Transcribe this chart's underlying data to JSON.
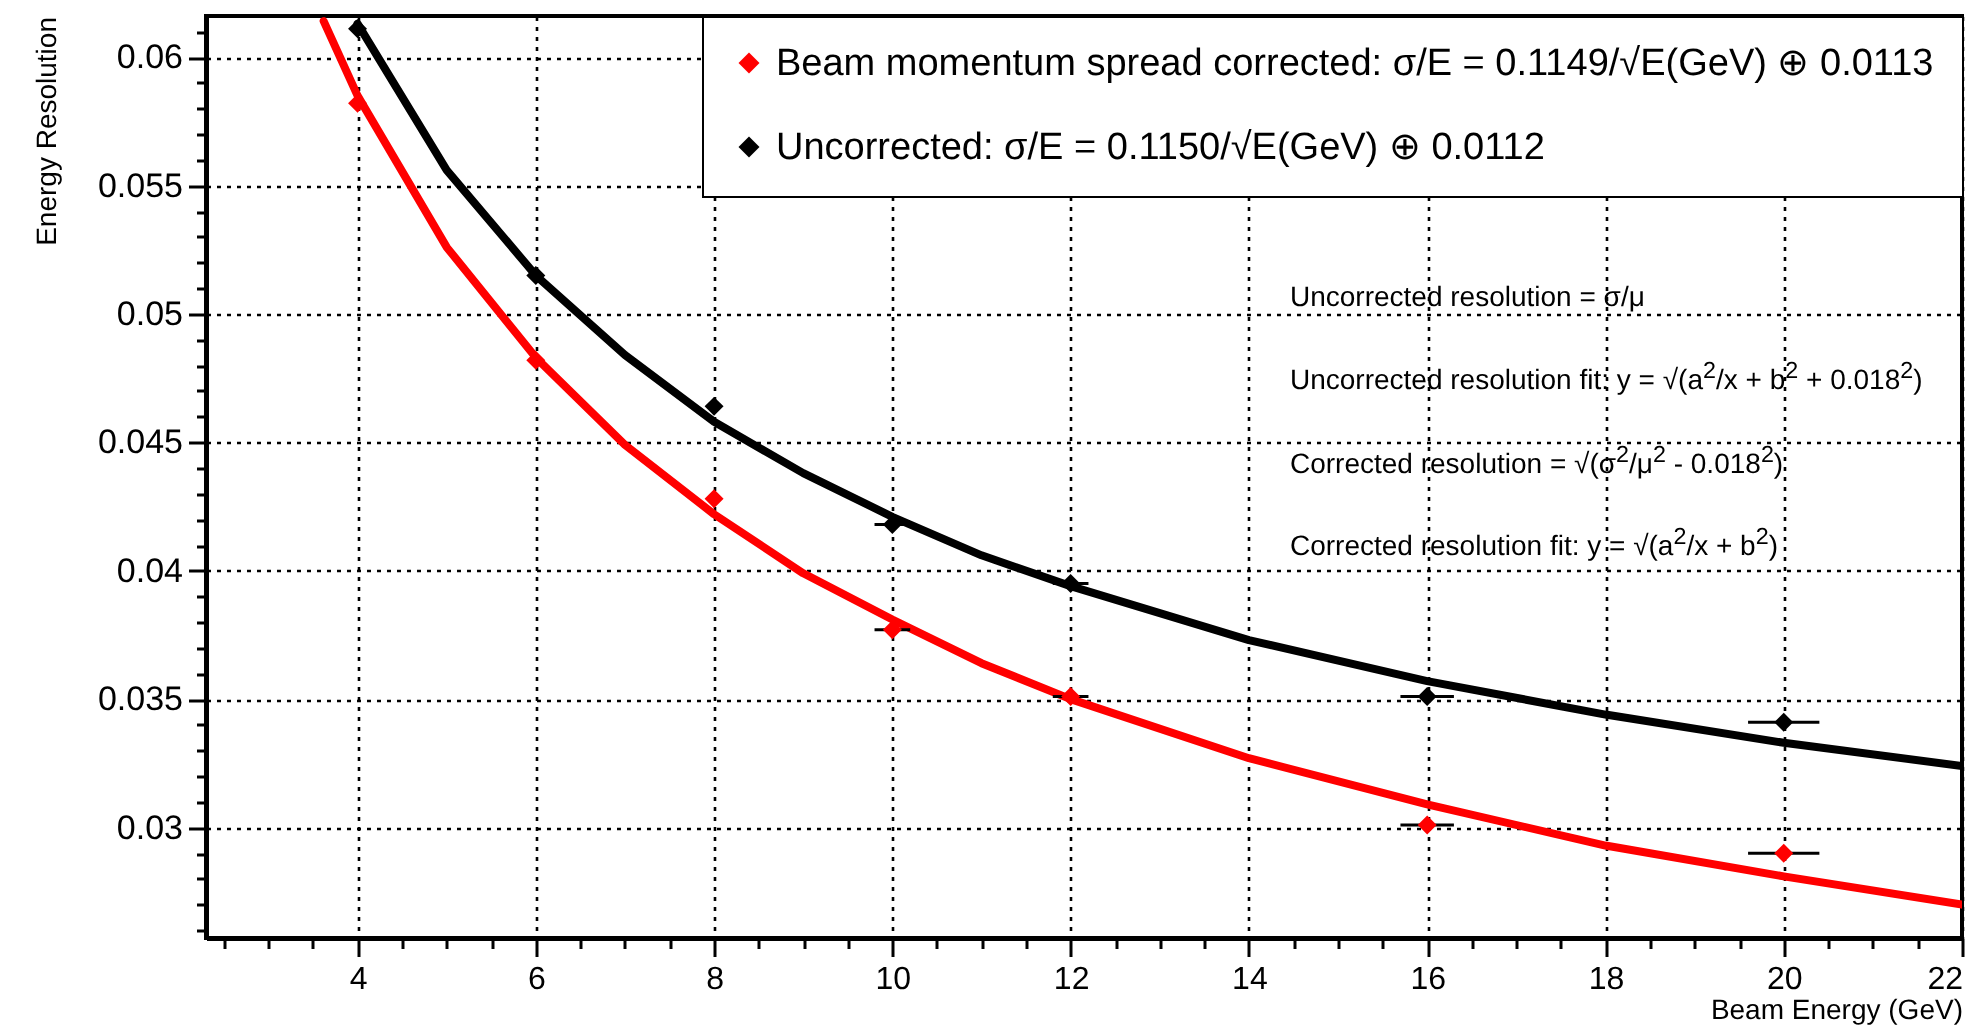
{
  "chart_data": {
    "type": "scatter",
    "xlabel": "Beam Energy (GeV)",
    "ylabel": "Energy Resolution",
    "xlim": [
      2.3,
      22
    ],
    "ylim": [
      0.0257,
      0.0616
    ],
    "xticks": [
      {
        "value": 2.5,
        "label": null
      },
      {
        "value": 3,
        "label": null
      },
      {
        "value": 3.5,
        "label": null
      },
      4,
      {
        "value": 4.5,
        "label": null
      },
      {
        "value": 5,
        "label": null
      },
      {
        "value": 5.5,
        "label": null
      },
      6,
      {
        "value": 6.5,
        "label": null
      },
      {
        "value": 7,
        "label": null
      },
      {
        "value": 7.5,
        "label": null
      },
      8,
      {
        "value": 8.5,
        "label": null
      },
      {
        "value": 9,
        "label": null
      },
      {
        "value": 9.5,
        "label": null
      },
      10,
      {
        "value": 10.5,
        "label": null
      },
      {
        "value": 11,
        "label": null
      },
      {
        "value": 11.5,
        "label": null
      },
      12,
      {
        "value": 12.5,
        "label": null
      },
      {
        "value": 13,
        "label": null
      },
      {
        "value": 13.5,
        "label": null
      },
      14,
      {
        "value": 14.5,
        "label": null
      },
      {
        "value": 15,
        "label": null
      },
      {
        "value": 15.5,
        "label": null
      },
      16,
      {
        "value": 16.5,
        "label": null
      },
      {
        "value": 17,
        "label": null
      },
      {
        "value": 17.5,
        "label": null
      },
      18,
      {
        "value": 18.5,
        "label": null
      },
      {
        "value": 19,
        "label": null
      },
      {
        "value": 19.5,
        "label": null
      },
      20,
      {
        "value": 20.5,
        "label": null
      },
      {
        "value": 21,
        "label": null
      },
      {
        "value": 21.5,
        "label": null
      },
      22
    ],
    "yticks": [
      {
        "value": 0.026,
        "label": null
      },
      {
        "value": 0.027,
        "label": null
      },
      {
        "value": 0.028,
        "label": null
      },
      {
        "value": 0.029,
        "label": null
      },
      0.03,
      {
        "value": 0.031,
        "label": null
      },
      {
        "value": 0.032,
        "label": null
      },
      {
        "value": 0.033,
        "label": null
      },
      {
        "value": 0.034,
        "label": null
      },
      0.035,
      {
        "value": 0.036,
        "label": null
      },
      {
        "value": 0.037,
        "label": null
      },
      {
        "value": 0.038,
        "label": null
      },
      {
        "value": 0.039,
        "label": null
      },
      0.04,
      {
        "value": 0.041,
        "label": null
      },
      {
        "value": 0.042,
        "label": null
      },
      {
        "value": 0.043,
        "label": null
      },
      {
        "value": 0.044,
        "label": null
      },
      0.045,
      {
        "value": 0.046,
        "label": null
      },
      {
        "value": 0.047,
        "label": null
      },
      {
        "value": 0.048,
        "label": null
      },
      {
        "value": 0.049,
        "label": null
      },
      0.05,
      {
        "value": 0.051,
        "label": null
      },
      {
        "value": 0.052,
        "label": null
      },
      {
        "value": 0.053,
        "label": null
      },
      {
        "value": 0.054,
        "label": null
      },
      0.055,
      {
        "value": 0.056,
        "label": null
      },
      {
        "value": 0.057,
        "label": null
      },
      {
        "value": 0.058,
        "label": null
      },
      {
        "value": 0.059,
        "label": null
      },
      0.06,
      {
        "value": 0.061,
        "label": null
      }
    ],
    "grid": true,
    "legend": "top right",
    "series": [
      {
        "type": "line",
        "color": "#ff0000",
        "x": [
          3.62,
          4,
          5,
          6,
          7,
          8,
          9,
          10,
          11,
          12,
          14,
          16,
          18,
          20,
          22
        ],
        "values": [
          0.0614,
          0.0585,
          0.0526,
          0.0483,
          0.0449,
          0.0422,
          0.0399,
          0.0381,
          0.0364,
          0.035,
          0.0327,
          0.0309,
          0.0293,
          0.0281,
          0.027
        ]
      },
      {
        "type": "line",
        "color": "#000000",
        "x": [
          4,
          5,
          6,
          7,
          8,
          9,
          10,
          11,
          12,
          14,
          16,
          18,
          20,
          22
        ],
        "values": [
          0.0613,
          0.0556,
          0.0515,
          0.0484,
          0.0458,
          0.0438,
          0.0421,
          0.0406,
          0.0394,
          0.0373,
          0.0357,
          0.0344,
          0.0333,
          0.0324
        ]
      },
      {
        "marker": "diamond",
        "name": "Beam momentum spread corrected: σ/E = 0.1149/√E(GeV) ⊕ 0.0113",
        "color": "#ff0000",
        "x": [
          4,
          6,
          8,
          10,
          12,
          16,
          20
        ],
        "values": [
          0.0582,
          0.0482,
          0.0428,
          0.0377,
          0.0351,
          0.0301,
          0.029
        ],
        "xerrors": [
          null,
          null,
          null,
          0.2,
          0.2,
          0.3,
          0.4
        ]
      },
      {
        "marker": "diamond",
        "name": "Uncorrected: σ/E = 0.1150/√E(GeV) ⊕ 0.0112",
        "color": "#000000",
        "x": [
          4,
          6,
          8,
          10,
          12,
          16,
          20
        ],
        "values": [
          0.0611,
          0.0515,
          0.0464,
          0.0418,
          0.0395,
          0.0351,
          0.0341
        ],
        "xerrors": [
          null,
          null,
          null,
          0.2,
          0.2,
          0.3,
          0.4
        ]
      }
    ],
    "annotations": [
      "Uncorrected resolution = σ/μ",
      "Uncorrected resolution fit: y = √(a$^{2}$/x + b$^{2}$ + 0.018$^{2}$)",
      "Corrected resolution = √(σ$^{2}$/μ$^{2}$ - 0.018$^{2}$)",
      "Corrected resolution fit: y = √(a$^{2}$/x + b$^{2}$)"
    ]
  }
}
